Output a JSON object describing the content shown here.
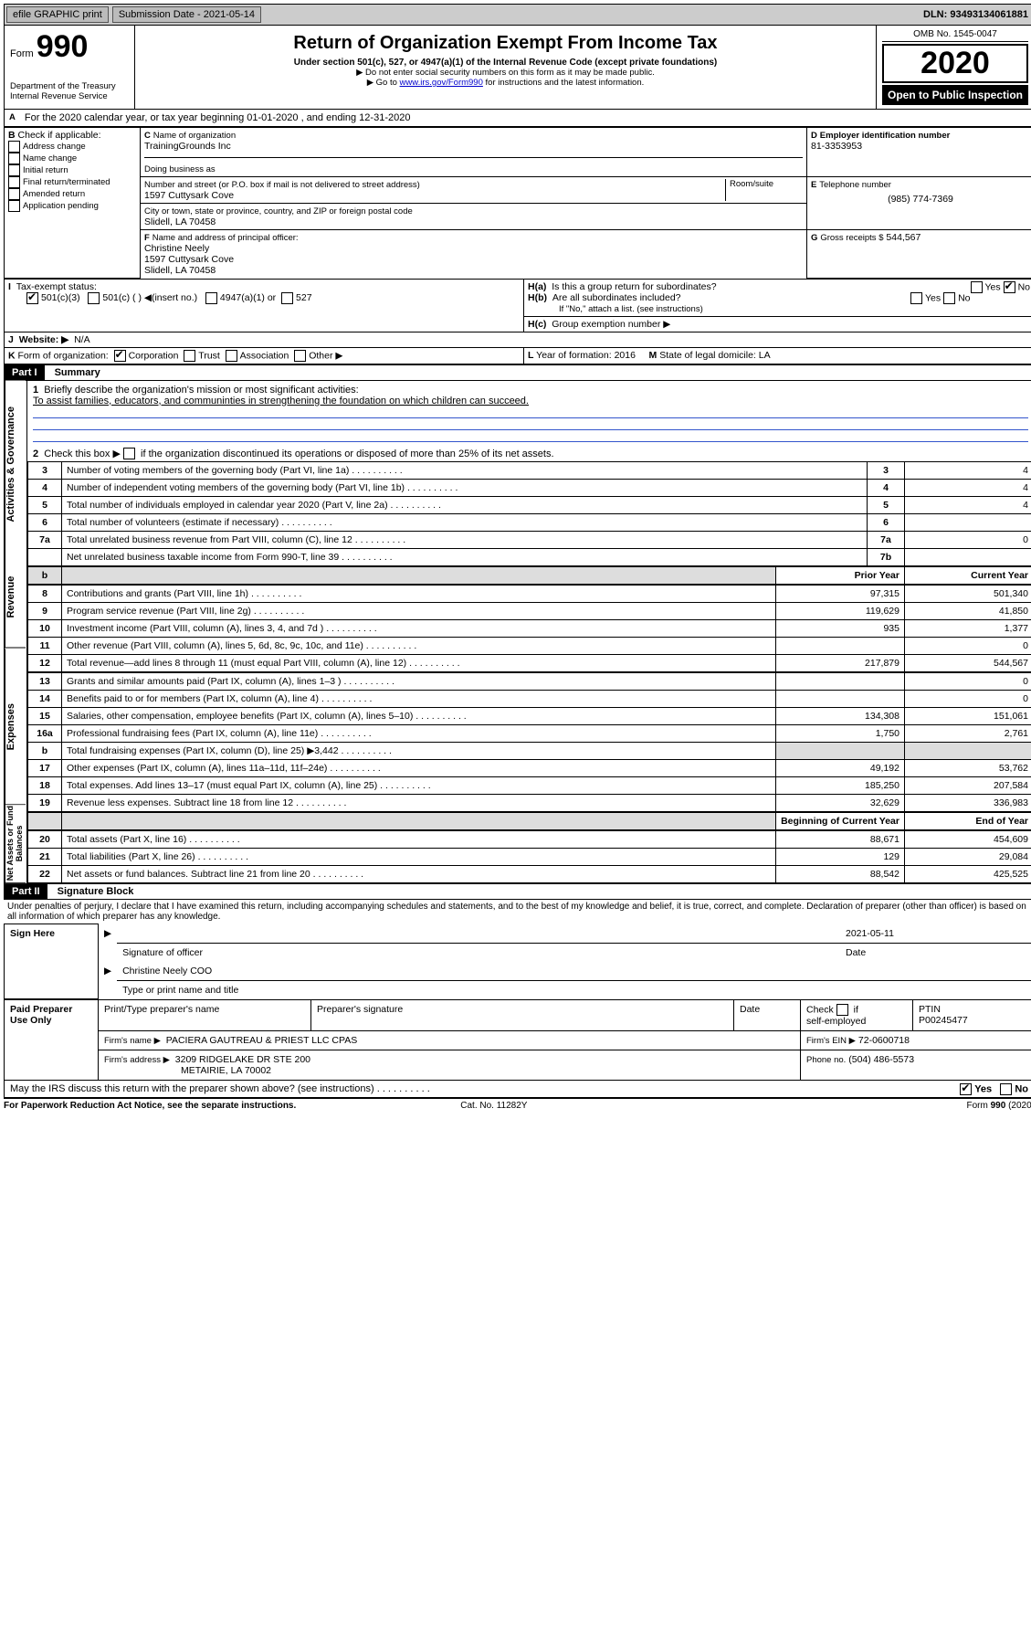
{
  "top": {
    "efile_label": "efile GRAPHIC print",
    "submission_label": "Submission Date - 2021-05-14",
    "dln_label": "DLN: 93493134061881"
  },
  "header": {
    "form_label": "Form",
    "form_number": "990",
    "title": "Return of Organization Exempt From Income Tax",
    "subtitle1": "Under section 501(c), 527, or 4947(a)(1) of the Internal Revenue Code (except private foundations)",
    "subtitle2": "▶ Do not enter social security numbers on this form as it may be made public.",
    "subtitle3_pre": "▶ Go to ",
    "subtitle3_link": "www.irs.gov/Form990",
    "subtitle3_post": " for instructions and the latest information.",
    "dept": "Department of the Treasury\nInternal Revenue Service",
    "omb": "OMB No. 1545-0047",
    "year": "2020",
    "open": "Open to Public Inspection"
  },
  "A": {
    "line": "For the 2020 calendar year, or tax year beginning 01-01-2020    , and ending 12-31-2020"
  },
  "B": {
    "label": "Check if applicable:",
    "items": [
      "Address change",
      "Name change",
      "Initial return",
      "Final return/terminated",
      "Amended return",
      "Application pending"
    ]
  },
  "C": {
    "label": "Name of organization",
    "name": "TrainingGrounds Inc",
    "dba_label": "Doing business as",
    "addr_label": "Number and street (or P.O. box if mail is not delivered to street address)",
    "room_label": "Room/suite",
    "addr": "1597 Cuttysark Cove",
    "city_label": "City or town, state or province, country, and ZIP or foreign postal code",
    "city": "Slidell, LA  70458"
  },
  "D": {
    "label": "Employer identification number",
    "value": "81-3353953"
  },
  "E": {
    "label": "Telephone number",
    "value": "(985) 774-7369"
  },
  "G": {
    "label": "Gross receipts $",
    "value": "544,567"
  },
  "F": {
    "label": "Name and address of principal officer:",
    "name": "Christine Neely",
    "addr1": "1597 Cuttysark Cove",
    "addr2": "Slidell, LA  70458"
  },
  "H": {
    "a_label": "Is this a group return for subordinates?",
    "a_no_checked": true,
    "b_label": "Are all subordinates included?",
    "b_note": "If \"No,\" attach a list. (see instructions)",
    "c_label": "Group exemption number ▶",
    "yes": "Yes",
    "no": "No"
  },
  "I": {
    "label": "Tax-exempt status:",
    "opt1": "501(c)(3)",
    "opt2": "501(c) (  ) ◀(insert no.)",
    "opt3": "4947(a)(1) or",
    "opt4": "527",
    "opt1_checked": true
  },
  "J": {
    "label": "Website: ▶",
    "value": "N/A"
  },
  "K": {
    "label": "Form of organization:",
    "corp": "Corporation",
    "corp_checked": true,
    "trust": "Trust",
    "assoc": "Association",
    "other": "Other ▶"
  },
  "L": {
    "label": "Year of formation:",
    "value": "2016"
  },
  "M": {
    "label": "State of legal domicile:",
    "value": "LA"
  },
  "part1": {
    "hdr": "Part I",
    "title": "Summary",
    "l1_label": "Briefly describe the organization's mission or most significant activities:",
    "l1_text": "To assist families, educators, and communinties in strengthening the foundation on which children can succeed.",
    "l2_label": "Check this box ▶",
    "l2_text": " if the organization discontinued its operations or disposed of more than 25% of its net assets.",
    "prior_hdr": "Prior Year",
    "curr_hdr": "Current Year",
    "begin_hdr": "Beginning of Current Year",
    "end_hdr": "End of Year",
    "rows_ag": [
      {
        "n": "3",
        "t": "Number of voting members of the governing body (Part VI, line 1a)",
        "box": "3",
        "v": "4"
      },
      {
        "n": "4",
        "t": "Number of independent voting members of the governing body (Part VI, line 1b)",
        "box": "4",
        "v": "4"
      },
      {
        "n": "5",
        "t": "Total number of individuals employed in calendar year 2020 (Part V, line 2a)",
        "box": "5",
        "v": "4"
      },
      {
        "n": "6",
        "t": "Total number of volunteers (estimate if necessary)",
        "box": "6",
        "v": ""
      },
      {
        "n": "7a",
        "t": "Total unrelated business revenue from Part VIII, column (C), line 12",
        "box": "7a",
        "v": "0"
      },
      {
        "n": "",
        "t": "Net unrelated business taxable income from Form 990-T, line 39",
        "box": "7b",
        "v": ""
      }
    ],
    "rows_rev": [
      {
        "n": "8",
        "t": "Contributions and grants (Part VIII, line 1h)",
        "p": "97,315",
        "c": "501,340"
      },
      {
        "n": "9",
        "t": "Program service revenue (Part VIII, line 2g)",
        "p": "119,629",
        "c": "41,850"
      },
      {
        "n": "10",
        "t": "Investment income (Part VIII, column (A), lines 3, 4, and 7d )",
        "p": "935",
        "c": "1,377"
      },
      {
        "n": "11",
        "t": "Other revenue (Part VIII, column (A), lines 5, 6d, 8c, 9c, 10c, and 11e)",
        "p": "",
        "c": "0"
      },
      {
        "n": "12",
        "t": "Total revenue—add lines 8 through 11 (must equal Part VIII, column (A), line 12)",
        "p": "217,879",
        "c": "544,567"
      }
    ],
    "rows_exp": [
      {
        "n": "13",
        "t": "Grants and similar amounts paid (Part IX, column (A), lines 1–3 )",
        "p": "",
        "c": "0"
      },
      {
        "n": "14",
        "t": "Benefits paid to or for members (Part IX, column (A), line 4)",
        "p": "",
        "c": "0"
      },
      {
        "n": "15",
        "t": "Salaries, other compensation, employee benefits (Part IX, column (A), lines 5–10)",
        "p": "134,308",
        "c": "151,061"
      },
      {
        "n": "16a",
        "t": "Professional fundraising fees (Part IX, column (A), line 11e)",
        "p": "1,750",
        "c": "2,761"
      },
      {
        "n": "b",
        "t": "Total fundraising expenses (Part IX, column (D), line 25) ▶3,442",
        "p": "__shade__",
        "c": "__shade__"
      },
      {
        "n": "17",
        "t": "Other expenses (Part IX, column (A), lines 11a–11d, 11f–24e)",
        "p": "49,192",
        "c": "53,762"
      },
      {
        "n": "18",
        "t": "Total expenses. Add lines 13–17 (must equal Part IX, column (A), line 25)",
        "p": "185,250",
        "c": "207,584"
      },
      {
        "n": "19",
        "t": "Revenue less expenses. Subtract line 18 from line 12",
        "p": "32,629",
        "c": "336,983"
      }
    ],
    "rows_na": [
      {
        "n": "20",
        "t": "Total assets (Part X, line 16)",
        "p": "88,671",
        "c": "454,609"
      },
      {
        "n": "21",
        "t": "Total liabilities (Part X, line 26)",
        "p": "129",
        "c": "29,084"
      },
      {
        "n": "22",
        "t": "Net assets or fund balances. Subtract line 21 from line 20",
        "p": "88,542",
        "c": "425,525"
      }
    ],
    "tabs": {
      "ag": "Activities & Governance",
      "rev": "Revenue",
      "exp": "Expenses",
      "na": "Net Assets or\nFund Balances"
    }
  },
  "part2": {
    "hdr": "Part II",
    "title": "Signature Block",
    "perjury": "Under penalties of perjury, I declare that I have examined this return, including accompanying schedules and statements, and to the best of my knowledge and belief, it is true, correct, and complete. Declaration of preparer (other than officer) is based on all information of which preparer has any knowledge.",
    "sign_here": "Sign Here",
    "sig_officer": "Signature of officer",
    "date_val": "2021-05-11",
    "date_lbl": "Date",
    "type_name": "Christine Neely COO",
    "type_lbl": "Type or print name and title",
    "paid": "Paid Preparer Use Only",
    "p_name_lbl": "Print/Type preparer's name",
    "p_sig_lbl": "Preparer's signature",
    "p_date_lbl": "Date",
    "p_check_lbl": "Check          if self-employed",
    "ptin_lbl": "PTIN",
    "ptin_val": "P00245477",
    "firm_name_lbl": "Firm's name     ▶",
    "firm_name": "PACIERA GAUTREAU & PRIEST LLC CPAS",
    "firm_ein_lbl": "Firm's EIN ▶",
    "firm_ein": "72-0600718",
    "firm_addr_lbl": "Firm's address ▶",
    "firm_addr1": "3209 RIDGELAKE DR STE 200",
    "firm_addr2": "METAIRIE, LA  70002",
    "phone_lbl": "Phone no.",
    "phone_val": "(504) 486-5573",
    "discuss": "May the IRS discuss this return with the preparer shown above? (see instructions)",
    "yes_checked": true
  },
  "footer": {
    "left": "For Paperwork Reduction Act Notice, see the separate instructions.",
    "mid": "Cat. No. 11282Y",
    "right": "Form 990 (2020)"
  }
}
